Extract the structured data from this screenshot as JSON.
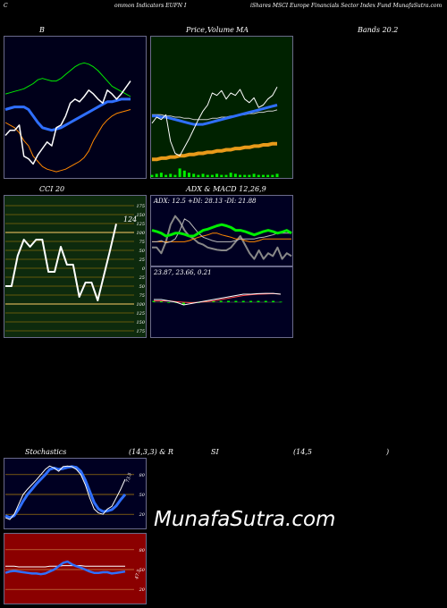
{
  "header": {
    "left": "C",
    "mid_left": "ommon  Indicators EUFN  I",
    "right": "iShares MSCI Europe   Financials Sector Index Fund MunafaSutra.com"
  },
  "titles": {
    "bands": "B",
    "price": "Price,",
    "volume": "Volume",
    "ma": "MA",
    "bands_right": "Bands 20.2",
    "cci": "CCI 20",
    "adx_macd": "ADX  & MACD 12,26,9",
    "stoch_left": "Stochastics",
    "stoch_mid": "(14,3,3) & R",
    "rsi": "SI",
    "rsi_params": "(14,5",
    "rsi_close": ")"
  },
  "brand": "MunafaSutra.com",
  "colors": {
    "bands_bg": "#00001a",
    "price_bg": "#002200",
    "cci_bg": "#0d2a0d",
    "adx_bg": "#000022",
    "stoch_bg": "#000022",
    "rsi_bg": "#8b0000",
    "white": "#ffffff",
    "blue": "#2f6fff",
    "green": "#00ee00",
    "orange": "#ff8800",
    "gold": "#e89a1a"
  },
  "chart_data": [
    {
      "type": "line",
      "name": "bollinger_bands",
      "n": 28,
      "ylim": [
        0,
        100
      ],
      "series": [
        {
          "values": [
            30,
            34,
            34,
            38,
            14,
            12,
            8,
            15,
            20,
            25,
            22,
            36,
            38,
            45,
            55,
            58,
            56,
            60,
            65,
            62,
            58,
            55,
            65,
            62,
            58,
            62,
            67,
            72
          ]
        },
        {
          "values": [
            50,
            51,
            52,
            52,
            52,
            50,
            45,
            40,
            36,
            35,
            34,
            35,
            36,
            38,
            40,
            42,
            44,
            46,
            48,
            50,
            52,
            54,
            56,
            56,
            57,
            58,
            58,
            58
          ]
        },
        {
          "values": [
            62,
            63,
            64,
            65,
            66,
            68,
            70,
            73,
            74,
            73,
            72,
            72,
            74,
            77,
            80,
            83,
            85,
            86,
            85,
            83,
            80,
            76,
            72,
            68,
            66,
            64,
            62,
            60
          ]
        },
        {
          "values": [
            40,
            38,
            36,
            32,
            26,
            22,
            14,
            10,
            6,
            4,
            3,
            2,
            3,
            4,
            6,
            8,
            10,
            13,
            18,
            26,
            32,
            38,
            42,
            45,
            47,
            48,
            49,
            50
          ]
        }
      ]
    },
    {
      "type": "line",
      "name": "price_volume_ma",
      "n": 28,
      "ylim": [
        0,
        100
      ],
      "series": [
        {
          "values": [
            35,
            40,
            38,
            42,
            20,
            10,
            8,
            15,
            22,
            30,
            38,
            45,
            50,
            60,
            58,
            62,
            55,
            60,
            58,
            63,
            55,
            52,
            56,
            48,
            50,
            55,
            58,
            65
          ]
        },
        {
          "values": [
            41,
            41,
            40,
            40,
            39,
            38,
            37,
            36,
            35,
            34,
            34,
            34,
            35,
            36,
            37,
            38,
            39,
            40,
            41,
            42,
            43,
            44,
            45,
            46,
            47,
            48,
            49,
            50
          ]
        },
        {
          "values": [
            42,
            42,
            42,
            41,
            41,
            40,
            40,
            39,
            39,
            38,
            38,
            38,
            38,
            39,
            39,
            40,
            40,
            41,
            41,
            42,
            42,
            43,
            43,
            44,
            44,
            45,
            45,
            46
          ]
        },
        {
          "values": [
            5,
            5,
            6,
            6,
            7,
            7,
            8,
            8,
            9,
            9,
            10,
            10,
            11,
            11,
            12,
            12,
            13,
            13,
            14,
            14,
            15,
            15,
            16,
            16,
            17,
            17,
            18,
            18
          ]
        }
      ],
      "volume": [
        2,
        3,
        4,
        2,
        3,
        2,
        8,
        6,
        4,
        3,
        2,
        3,
        2,
        2,
        3,
        2,
        2,
        4,
        3,
        2,
        2,
        2,
        3,
        2,
        2,
        2,
        2,
        3
      ]
    },
    {
      "type": "line",
      "name": "cci",
      "ylim": [
        -175,
        175
      ],
      "yticks": [
        175,
        150,
        125,
        100,
        75,
        50,
        25,
        0,
        -25,
        -50,
        -75,
        -100,
        -125,
        -150,
        -175
      ],
      "ytick_labels": [
        "175",
        "150",
        "125",
        "100",
        "75",
        "50",
        "25",
        "0",
        "25",
        "50",
        "75",
        "100",
        "125",
        "150",
        "175"
      ],
      "value_label": "124",
      "values": [
        -50,
        -50,
        35,
        80,
        60,
        80,
        80,
        -10,
        -10,
        60,
        10,
        10,
        -80,
        -40,
        -40,
        -90,
        -20,
        50,
        124
      ]
    },
    {
      "type": "line",
      "name": "adx",
      "label": "ADX: 12.5  +DI: 28.13  -DI: 21.88",
      "ylim": [
        0,
        100
      ],
      "series": [
        {
          "values": [
            60,
            58,
            55,
            50,
            52,
            55,
            55,
            53,
            50,
            50,
            55,
            60,
            62,
            65,
            68,
            70,
            68,
            65,
            60,
            60,
            58,
            55,
            52,
            55,
            58,
            60,
            58,
            55,
            57,
            60,
            55
          ]
        },
        {
          "values": [
            40,
            40,
            42,
            38,
            40,
            45,
            60,
            80,
            75,
            65,
            55,
            48,
            45,
            42,
            40,
            40,
            40,
            40,
            42,
            45,
            45,
            45,
            45,
            47,
            48,
            50,
            52,
            55,
            55,
            55,
            55
          ]
        },
        {
          "values": [
            40,
            40,
            40,
            40,
            40,
            40,
            40,
            40,
            42,
            45,
            48,
            50,
            52,
            55,
            55,
            52,
            50,
            48,
            45,
            45,
            42,
            40,
            40,
            42,
            45,
            45,
            45,
            45,
            45,
            45,
            45
          ]
        },
        {
          "values": [
            30,
            30,
            20,
            40,
            70,
            85,
            75,
            60,
            50,
            45,
            38,
            35,
            30,
            28,
            26,
            25,
            25,
            30,
            40,
            50,
            35,
            20,
            10,
            25,
            10,
            20,
            15,
            30,
            10,
            20,
            15
          ]
        }
      ]
    },
    {
      "type": "line",
      "name": "macd",
      "label": "23.87,  23.66,  0.21",
      "ylim": [
        -1,
        1
      ],
      "series": [
        {
          "values": [
            0.1,
            0.1,
            0.05,
            0.0,
            -0.1,
            -0.05,
            0.0,
            0.05,
            0.1,
            0.15,
            0.2,
            0.25,
            0.3,
            0.3,
            0.32,
            0.33,
            0.33,
            0.3
          ]
        },
        {
          "values": [
            0.05,
            0.05,
            0.05,
            0.02,
            0.0,
            -0.02,
            0.0,
            0.02,
            0.05,
            0.1,
            0.15,
            0.2,
            0.25,
            0.28,
            0.3,
            0.31,
            0.32,
            0.3
          ]
        }
      ],
      "histogram": [
        0.05,
        0.05,
        0.0,
        -0.02,
        -0.1,
        -0.03,
        0.0,
        0.03,
        0.05,
        0.05,
        0.05,
        0.05,
        0.05,
        0.05,
        0.05,
        0.05,
        0.05,
        0.02
      ]
    },
    {
      "type": "line",
      "name": "stochastics",
      "ylim": [
        0,
        100
      ],
      "yticks": [
        80,
        50,
        20
      ],
      "ytick_labels": [
        "80",
        "50",
        "20"
      ],
      "value_label": "73.5",
      "series": [
        {
          "values": [
            15,
            12,
            20,
            35,
            50,
            58,
            65,
            72,
            80,
            88,
            93,
            90,
            85,
            92,
            93,
            92,
            88,
            80,
            65,
            45,
            28,
            22,
            20,
            28,
            32,
            45,
            58,
            73
          ]
        },
        {
          "values": [
            18,
            15,
            18,
            28,
            40,
            50,
            58,
            66,
            73,
            80,
            88,
            90,
            88,
            89,
            91,
            92,
            91,
            85,
            72,
            55,
            38,
            28,
            24,
            25,
            27,
            33,
            42,
            50
          ]
        }
      ]
    },
    {
      "type": "line",
      "name": "rsi",
      "ylim": [
        0,
        100
      ],
      "yticks": [
        80,
        50,
        20
      ],
      "ytick_labels": [
        "80",
        "50",
        "20"
      ],
      "value_label": "47.5",
      "series": [
        {
          "values": [
            45,
            47,
            48,
            47,
            46,
            45,
            44,
            44,
            43,
            44,
            47,
            50,
            55,
            60,
            62,
            58,
            55,
            53,
            50,
            47,
            45,
            45,
            46,
            46,
            44,
            45,
            46,
            47
          ]
        },
        {
          "values": [
            55,
            55,
            55,
            54,
            54,
            54,
            54,
            54,
            54,
            54,
            55,
            55,
            55,
            56,
            56,
            56,
            56,
            56,
            55,
            55,
            55,
            55,
            55,
            55,
            55,
            55,
            55,
            55
          ]
        }
      ]
    }
  ]
}
